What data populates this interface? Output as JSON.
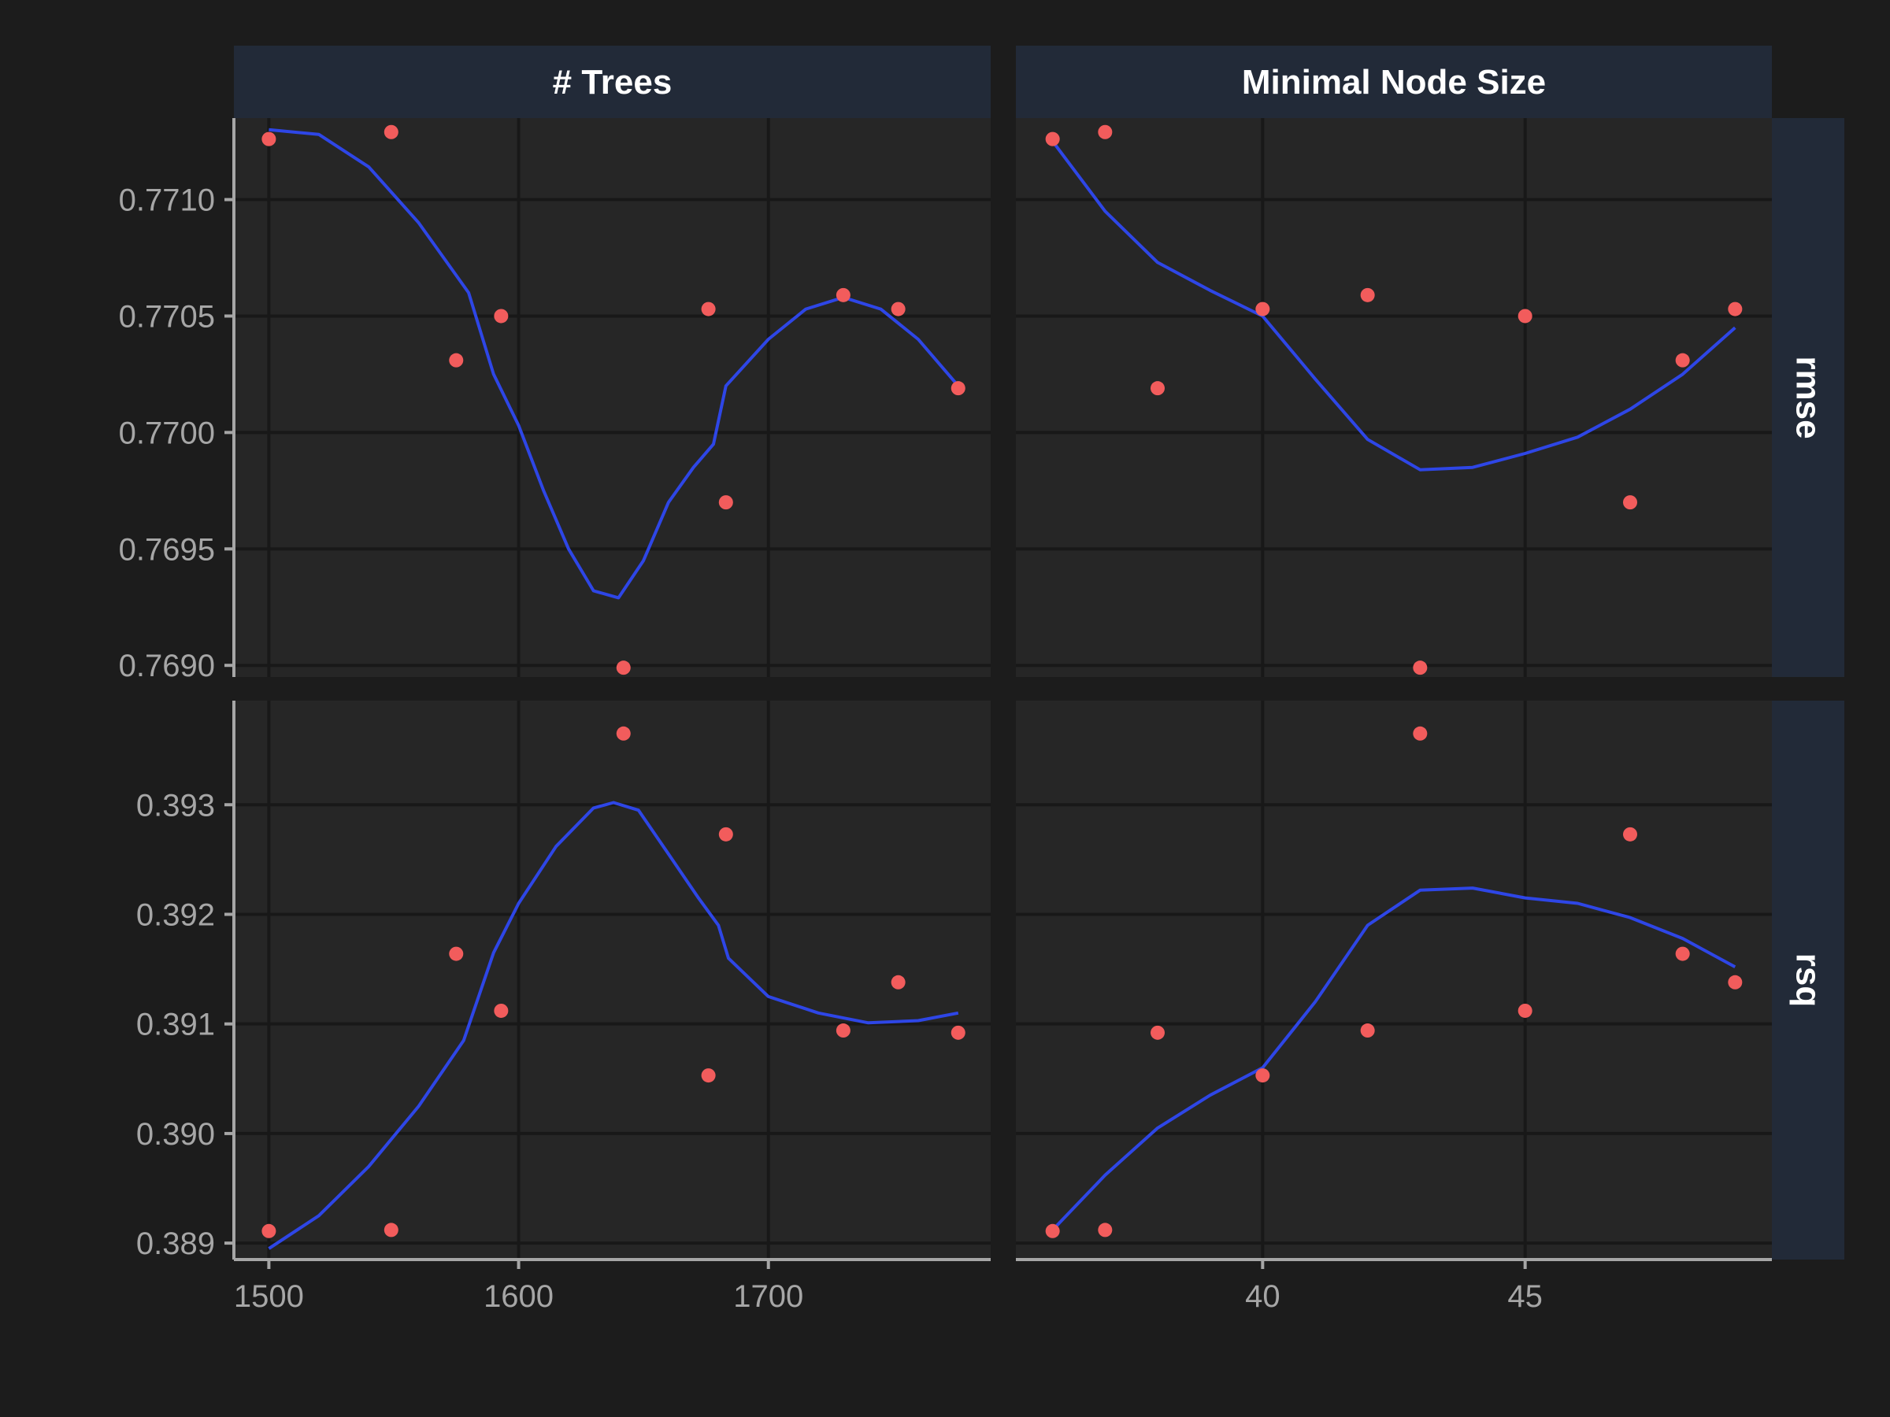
{
  "colors": {
    "background": "#1c1c1c",
    "panel": "#262626",
    "strip": "#222a38",
    "grid": "#181818",
    "axis": "#a6a6a6",
    "points": "#f25c5c",
    "smooth": "#2e46e6"
  },
  "chart_data": {
    "type": "scatter",
    "facet_cols": [
      "# Trees",
      "Minimal Node Size"
    ],
    "facet_rows": [
      "rmse",
      "rsq"
    ],
    "x_axes": [
      {
        "range": [
          1486,
          1789
        ],
        "ticks": [
          1500,
          1600,
          1700
        ],
        "tick_labels": [
          "1500",
          "1600",
          "1700"
        ]
      },
      {
        "range": [
          35.3,
          49.7
        ],
        "ticks": [
          40,
          45
        ],
        "tick_labels": [
          "40",
          "45"
        ]
      }
    ],
    "y_axes": [
      {
        "range": [
          0.76895,
          0.77135
        ],
        "ticks": [
          0.769,
          0.7695,
          0.77,
          0.7705,
          0.771
        ],
        "tick_labels": [
          "0.7690",
          "0.7695",
          "0.7700",
          "0.7705",
          "0.7710"
        ]
      },
      {
        "range": [
          0.38885,
          0.39395
        ],
        "ticks": [
          0.389,
          0.39,
          0.391,
          0.392,
          0.393
        ],
        "tick_labels": [
          "0.389",
          "0.390",
          "0.391",
          "0.392",
          "0.393"
        ]
      }
    ],
    "panels": [
      {
        "col": 0,
        "row": 0,
        "points": [
          [
            1500,
            0.77126
          ],
          [
            1549,
            0.77129
          ],
          [
            1575,
            0.77031
          ],
          [
            1593,
            0.7705
          ],
          [
            1642,
            0.76899
          ],
          [
            1676,
            0.77053
          ],
          [
            1683,
            0.7697
          ],
          [
            1730,
            0.77059
          ],
          [
            1752,
            0.77053
          ],
          [
            1776,
            0.77019
          ]
        ],
        "smooth": [
          [
            1500,
            0.7713
          ],
          [
            1520,
            0.77128
          ],
          [
            1540,
            0.77114
          ],
          [
            1560,
            0.7709
          ],
          [
            1580,
            0.7706
          ],
          [
            1590,
            0.77025
          ],
          [
            1600,
            0.77003
          ],
          [
            1610,
            0.76975
          ],
          [
            1620,
            0.7695
          ],
          [
            1630,
            0.76932
          ],
          [
            1640,
            0.76929
          ],
          [
            1650,
            0.76945
          ],
          [
            1660,
            0.7697
          ],
          [
            1670,
            0.76985
          ],
          [
            1678,
            0.76995
          ],
          [
            1683,
            0.7702
          ],
          [
            1700,
            0.7704
          ],
          [
            1715,
            0.77053
          ],
          [
            1730,
            0.77058
          ],
          [
            1745,
            0.77053
          ],
          [
            1760,
            0.7704
          ],
          [
            1776,
            0.7702
          ]
        ]
      },
      {
        "col": 1,
        "row": 0,
        "points": [
          [
            36,
            0.77126
          ],
          [
            37,
            0.77129
          ],
          [
            38,
            0.77019
          ],
          [
            40,
            0.77053
          ],
          [
            42,
            0.77059
          ],
          [
            43,
            0.76899
          ],
          [
            45,
            0.7705
          ],
          [
            47,
            0.7697
          ],
          [
            48,
            0.77031
          ],
          [
            49,
            0.77053
          ]
        ],
        "smooth": [
          [
            36,
            0.77125
          ],
          [
            37,
            0.77095
          ],
          [
            38,
            0.77073
          ],
          [
            39,
            0.77061
          ],
          [
            40,
            0.7705
          ],
          [
            41,
            0.77023
          ],
          [
            42,
            0.76997
          ],
          [
            43,
            0.76984
          ],
          [
            44,
            0.76985
          ],
          [
            45,
            0.76991
          ],
          [
            46,
            0.76998
          ],
          [
            47,
            0.7701
          ],
          [
            48,
            0.77025
          ],
          [
            49,
            0.77045
          ]
        ]
      },
      {
        "col": 0,
        "row": 1,
        "points": [
          [
            1500,
            0.38911
          ],
          [
            1549,
            0.38912
          ],
          [
            1575,
            0.39164
          ],
          [
            1593,
            0.39112
          ],
          [
            1642,
            0.39365
          ],
          [
            1676,
            0.39053
          ],
          [
            1683,
            0.39273
          ],
          [
            1730,
            0.39094
          ],
          [
            1752,
            0.39138
          ],
          [
            1776,
            0.39092
          ]
        ],
        "smooth": [
          [
            1500,
            0.38895
          ],
          [
            1520,
            0.38925
          ],
          [
            1540,
            0.3897
          ],
          [
            1560,
            0.39025
          ],
          [
            1578,
            0.39085
          ],
          [
            1590,
            0.39165
          ],
          [
            1600,
            0.3921
          ],
          [
            1615,
            0.39262
          ],
          [
            1630,
            0.39297
          ],
          [
            1638,
            0.39302
          ],
          [
            1648,
            0.39295
          ],
          [
            1660,
            0.39255
          ],
          [
            1672,
            0.39215
          ],
          [
            1680,
            0.3919
          ],
          [
            1684,
            0.3916
          ],
          [
            1700,
            0.39125
          ],
          [
            1720,
            0.3911
          ],
          [
            1740,
            0.39101
          ],
          [
            1760,
            0.39103
          ],
          [
            1776,
            0.3911
          ]
        ]
      },
      {
        "col": 1,
        "row": 1,
        "points": [
          [
            36,
            0.38911
          ],
          [
            37,
            0.38912
          ],
          [
            38,
            0.39092
          ],
          [
            40,
            0.39053
          ],
          [
            42,
            0.39094
          ],
          [
            43,
            0.39365
          ],
          [
            45,
            0.39112
          ],
          [
            47,
            0.39273
          ],
          [
            48,
            0.39164
          ],
          [
            49,
            0.39138
          ]
        ],
        "smooth": [
          [
            36,
            0.38912
          ],
          [
            37,
            0.38962
          ],
          [
            38,
            0.39005
          ],
          [
            39,
            0.39035
          ],
          [
            40,
            0.3906
          ],
          [
            41,
            0.3912
          ],
          [
            42,
            0.3919
          ],
          [
            43,
            0.39222
          ],
          [
            44,
            0.39224
          ],
          [
            45,
            0.39215
          ],
          [
            46,
            0.3921
          ],
          [
            47,
            0.39197
          ],
          [
            48,
            0.39178
          ],
          [
            49,
            0.39152
          ]
        ]
      }
    ]
  }
}
